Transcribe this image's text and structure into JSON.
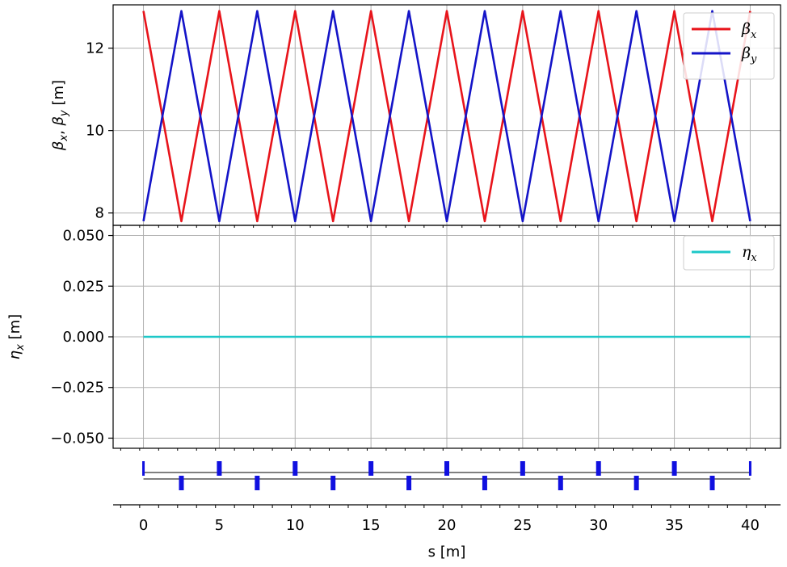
{
  "figure": {
    "title": "",
    "xlabel": "s [m]"
  },
  "chart_data": [
    {
      "type": "line",
      "panel": "beta",
      "title": "",
      "xlabel": "",
      "ylabel": "βx, βy [m]",
      "ylabel_parts": {
        "b1": "β",
        "s1": "x",
        "comma": ", ",
        "b2": "β",
        "s2": "y",
        "unit": " [m]"
      },
      "xlim": [
        -2,
        42
      ],
      "ylim": [
        7.7,
        13.05
      ],
      "xticks": [
        0,
        5,
        10,
        15,
        20,
        25,
        30,
        35,
        40
      ],
      "yticks": [
        8,
        10,
        12
      ],
      "ytick_labels": [
        "8",
        "10",
        "12"
      ],
      "grid": true,
      "legend_position": "top-right",
      "period": 5,
      "beta_max": 12.9,
      "beta_min": 7.8,
      "series": [
        {
          "name": "βx",
          "label_base": "β",
          "label_sub": "x",
          "color": "#e8141b",
          "phase": 0
        },
        {
          "name": "βy",
          "label_base": "β",
          "label_sub": "y",
          "color": "#1414c8",
          "phase": 2.5
        }
      ]
    },
    {
      "type": "line",
      "panel": "dispersion",
      "title": "",
      "xlabel": "s [m]",
      "ylabel": "ηx [m]",
      "ylabel_parts": {
        "b1": "η",
        "s1": "x",
        "unit": " [m]"
      },
      "xlim": [
        -2,
        42
      ],
      "ylim": [
        -0.055,
        0.055
      ],
      "xticks": [
        0,
        5,
        10,
        15,
        20,
        25,
        30,
        35,
        40
      ],
      "xtick_labels": [
        "0",
        "5",
        "10",
        "15",
        "20",
        "25",
        "30",
        "35",
        "40"
      ],
      "yticks": [
        -0.05,
        -0.025,
        0.0,
        0.025,
        0.05
      ],
      "ytick_labels": [
        "−0.050",
        "−0.025",
        "0.000",
        "0.025",
        "0.050"
      ],
      "grid": true,
      "legend_position": "top-right",
      "series": [
        {
          "name": "ηx",
          "label_base": "η",
          "label_sub": "x",
          "color": "#1ec8c8",
          "x": [
            0,
            40
          ],
          "y": [
            0,
            0
          ]
        }
      ]
    }
  ],
  "lattice": {
    "color": "#1010e0",
    "focusing_quads_at": [
      0,
      5,
      10,
      15,
      20,
      25,
      30,
      35,
      40
    ],
    "defocusing_quads_at": [
      2.5,
      7.5,
      12.5,
      17.5,
      22.5,
      27.5,
      32.5,
      37.5
    ]
  }
}
